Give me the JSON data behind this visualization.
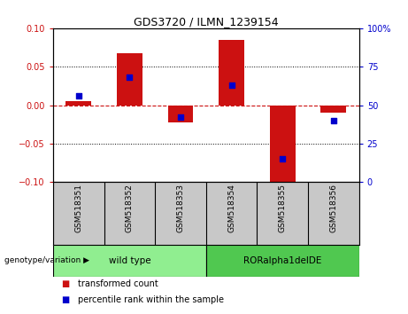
{
  "title": "GDS3720 / ILMN_1239154",
  "samples": [
    "GSM518351",
    "GSM518352",
    "GSM518353",
    "GSM518354",
    "GSM518355",
    "GSM518356"
  ],
  "transformed_count": [
    0.005,
    0.068,
    -0.022,
    0.085,
    -0.105,
    -0.01
  ],
  "percentile_rank": [
    56,
    68,
    42,
    63,
    15,
    40
  ],
  "ylim_left": [
    -0.1,
    0.1
  ],
  "ylim_right": [
    0,
    100
  ],
  "groups": [
    {
      "label": "wild type",
      "indices": [
        0,
        1,
        2
      ],
      "color": "#90EE90"
    },
    {
      "label": "RORalpha1delDE",
      "indices": [
        3,
        4,
        5
      ],
      "color": "#50C850"
    }
  ],
  "bar_color": "#CC1111",
  "blue_color": "#0000CC",
  "bar_width": 0.5,
  "background_plot": "#FFFFFF",
  "tick_label_area_color": "#C8C8C8",
  "left_tick_color": "#CC1111",
  "right_tick_color": "#0000CC",
  "grid_color": "#000000",
  "zero_line_color": "#CC1111",
  "legend_items": [
    "transformed count",
    "percentile rank within the sample"
  ],
  "genotype_label": "genotype/variation ▶"
}
